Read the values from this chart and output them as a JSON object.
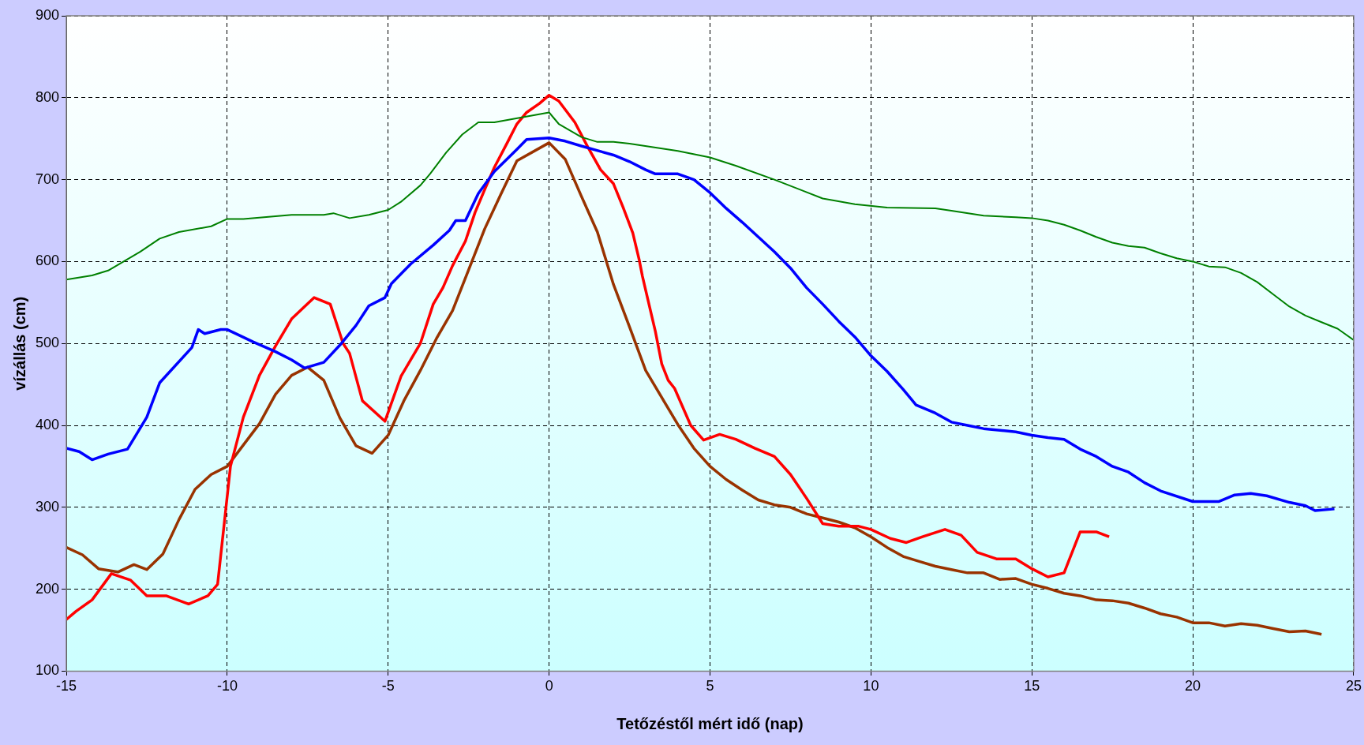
{
  "chart_data": {
    "type": "line",
    "xlabel": "Tetőzéstől mért idő (nap)",
    "ylabel": "vízállás (cm)",
    "xlim": [
      -15,
      25
    ],
    "xticks": [
      -15,
      -10,
      -5,
      0,
      5,
      10,
      15,
      20,
      25
    ],
    "ylim": [
      100,
      900
    ],
    "yticks": [
      100,
      200,
      300,
      400,
      500,
      600,
      700,
      800,
      900
    ],
    "grid": true,
    "legend": false,
    "marker": "none",
    "series": [
      {
        "color": "#008000",
        "x": [
          -15,
          -14.2,
          -13.7,
          -12.7,
          -12.1,
          -11.5,
          -10.5,
          -10,
          -9.5,
          -8,
          -7,
          -6.7,
          -6.2,
          -5.6,
          -5,
          -4.6,
          -4,
          -3.7,
          -3.2,
          -2.7,
          -2.2,
          -1.7,
          0,
          0.3,
          1,
          1.5,
          2,
          2.5,
          4,
          5,
          5.8,
          7,
          8.5,
          9.5,
          10.5,
          12,
          12.5,
          13.5,
          14.5,
          15,
          15.5,
          16,
          16.5,
          17,
          17.5,
          18,
          18.5,
          19,
          19.5,
          20,
          20.5,
          21,
          21.5,
          22,
          22.5,
          23,
          23.5,
          24,
          24.5,
          25
        ],
        "values": [
          578,
          583,
          589,
          612,
          628,
          636,
          643,
          652,
          652,
          657,
          657,
          659,
          653,
          657,
          663,
          673,
          693,
          707,
          733,
          755,
          770,
          770,
          782,
          768,
          752,
          746,
          746,
          744,
          735,
          727,
          717,
          700,
          677,
          670,
          666,
          665,
          662,
          656,
          654,
          653,
          650,
          645,
          638,
          630,
          623,
          619,
          617,
          610,
          604,
          600,
          594,
          593,
          586,
          575,
          560,
          545,
          534,
          526,
          518,
          504
        ]
      },
      {
        "color": "#0000ff",
        "x": [
          -15,
          -14.6,
          -14.2,
          -13.7,
          -13.1,
          -12.5,
          -12.1,
          -11.1,
          -10.9,
          -10.7,
          -10.2,
          -10,
          -9.2,
          -8.5,
          -8,
          -7.6,
          -7,
          -6.5,
          -6,
          -5.6,
          -5.1,
          -4.9,
          -4.3,
          -3.6,
          -3.1,
          -2.9,
          -2.6,
          -2.2,
          -1.7,
          -1,
          -0.7,
          0,
          0.5,
          1,
          2,
          2.5,
          3,
          3.3,
          4,
          4.5,
          5,
          5.5,
          6,
          6.5,
          7,
          7.5,
          8,
          8.5,
          9,
          9.5,
          10,
          10.5,
          11,
          11.4,
          12,
          12.5,
          13,
          13.5,
          14.5,
          15,
          15.5,
          16,
          16.5,
          17,
          17.5,
          18,
          18.5,
          19,
          20,
          20.8,
          21.3,
          21.8,
          22.3,
          23,
          23.5,
          23.8,
          24.4
        ],
        "values": [
          372,
          368,
          358,
          365,
          371,
          410,
          452,
          495,
          517,
          512,
          517,
          517,
          502,
          490,
          480,
          470,
          477,
          498,
          522,
          546,
          556,
          573,
          597,
          620,
          638,
          650,
          650,
          683,
          710,
          737,
          749,
          751,
          747,
          741,
          730,
          722,
          712,
          707,
          707,
          700,
          684,
          665,
          648,
          630,
          612,
          592,
          568,
          548,
          527,
          508,
          485,
          466,
          444,
          425,
          415,
          404,
          400,
          396,
          392,
          388,
          385,
          383,
          371,
          362,
          350,
          343,
          330,
          320,
          307,
          307,
          315,
          317,
          314,
          306,
          302,
          296,
          298
        ]
      },
      {
        "color": "#ff0000",
        "x": [
          -15,
          -14.7,
          -14.2,
          -13.6,
          -13,
          -12.5,
          -11.9,
          -11.2,
          -10.6,
          -10.3,
          -9.9,
          -9.5,
          -9,
          -8.5,
          -8,
          -7.3,
          -6.8,
          -6.4,
          -6.2,
          -5.8,
          -5.1,
          -4.6,
          -4.3,
          -4,
          -3.6,
          -3.3,
          -3,
          -2.6,
          -2.3,
          -2,
          -1.7,
          -1.3,
          -1,
          -0.7,
          -0.3,
          0,
          0.3,
          0.8,
          1.2,
          1.6,
          2,
          2.3,
          2.6,
          2.8,
          2.9,
          3,
          3.3,
          3.5,
          3.7,
          3.9,
          4.4,
          4.8,
          5.3,
          5.8,
          6.4,
          7,
          7.5,
          8,
          8.5,
          9,
          9.6,
          10,
          10.6,
          11.1,
          11.6,
          12.3,
          12.8,
          13.3,
          13.9,
          14.5,
          15,
          15.5,
          16,
          16.5,
          17,
          17.4
        ],
        "values": [
          163,
          173,
          187,
          219,
          211,
          192,
          192,
          182,
          192,
          206,
          350,
          410,
          461,
          497,
          530,
          556,
          548,
          500,
          488,
          430,
          405,
          460,
          480,
          500,
          548,
          568,
          595,
          625,
          660,
          688,
          715,
          745,
          768,
          782,
          793,
          803,
          796,
          770,
          740,
          712,
          695,
          666,
          635,
          602,
          582,
          565,
          515,
          475,
          455,
          445,
          400,
          382,
          389,
          383,
          372,
          362,
          340,
          311,
          280,
          277,
          277,
          273,
          262,
          257,
          264,
          273,
          266,
          245,
          237,
          237,
          225,
          215,
          220,
          270,
          270,
          264
        ]
      },
      {
        "color": "#993300",
        "x": [
          -15,
          -14.5,
          -14,
          -13.4,
          -12.9,
          -12.5,
          -12,
          -11.5,
          -11,
          -10.5,
          -10,
          -9.5,
          -9,
          -8.5,
          -8,
          -7.5,
          -7,
          -6.5,
          -6,
          -5.5,
          -5,
          -4.5,
          -4,
          -3.5,
          -3,
          -2.5,
          -2,
          -1.5,
          -1,
          0,
          0.5,
          1,
          1.5,
          2,
          2.5,
          3,
          3.5,
          4,
          4.5,
          5,
          5.5,
          6,
          6.5,
          7,
          7.5,
          8,
          8.5,
          9,
          9.5,
          10,
          10.5,
          11,
          11.5,
          12,
          12.5,
          13,
          13.5,
          14,
          14.5,
          15,
          15.5,
          16,
          16.5,
          17,
          17.5,
          18,
          18.5,
          19,
          19.5,
          20,
          20.5,
          21,
          21.5,
          22,
          22.5,
          23,
          23.5,
          24
        ],
        "values": [
          251,
          242,
          225,
          221,
          230,
          224,
          243,
          285,
          322,
          340,
          350,
          376,
          402,
          438,
          461,
          471,
          455,
          409,
          375,
          366,
          388,
          431,
          467,
          506,
          540,
          590,
          640,
          682,
          723,
          745,
          725,
          680,
          636,
          572,
          520,
          467,
          434,
          401,
          372,
          350,
          334,
          321,
          309,
          303,
          300,
          292,
          287,
          282,
          275,
          264,
          251,
          240,
          234,
          228,
          224,
          220,
          220,
          212,
          213,
          206,
          201,
          195,
          192,
          187,
          186,
          183,
          177,
          170,
          166,
          159,
          159,
          155,
          158,
          156,
          152,
          148,
          149,
          145
        ]
      }
    ]
  }
}
